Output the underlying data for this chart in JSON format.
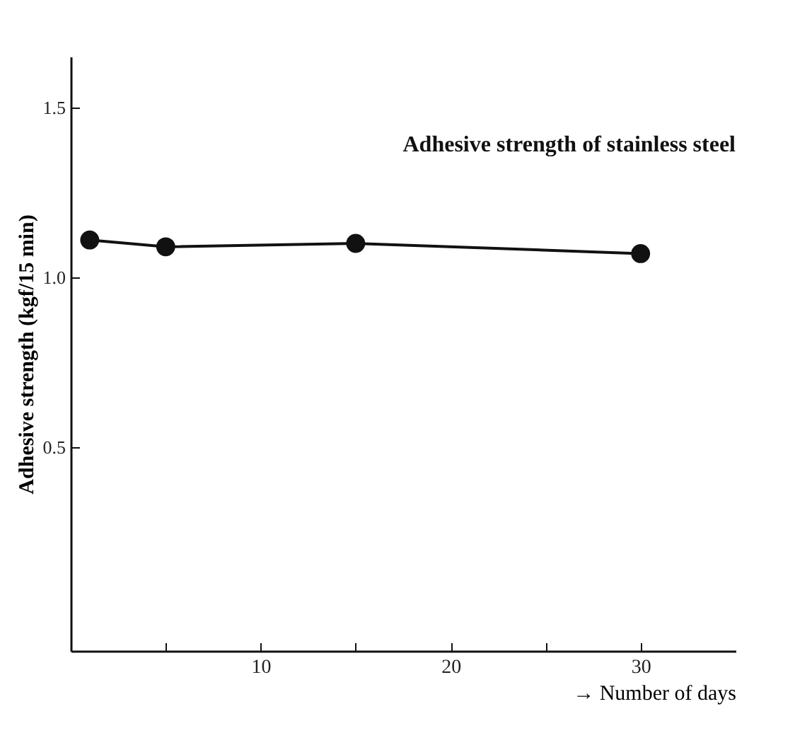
{
  "chart_data": {
    "type": "line",
    "title": "Adhesive strength of stainless steel",
    "xlabel": "→ Number of days",
    "ylabel": "Adhesive strength (kgf/15 min)",
    "x": [
      1,
      5,
      15,
      30
    ],
    "series": [
      {
        "color": "#111111",
        "values": [
          1.11,
          1.09,
          1.1,
          1.07
        ]
      }
    ],
    "xlim": [
      0,
      35
    ],
    "xticks": [
      {
        "value": 5,
        "label": null
      },
      10,
      {
        "value": 15,
        "label": null
      },
      20,
      {
        "value": 25,
        "label": null
      },
      30
    ],
    "ylim": [
      -0.1,
      1.65
    ],
    "yticks": [
      0.5,
      {
        "value": 1,
        "label": "1.0"
      },
      1.5
    ],
    "grid": false,
    "marker": "circle",
    "line_style": "solid"
  }
}
